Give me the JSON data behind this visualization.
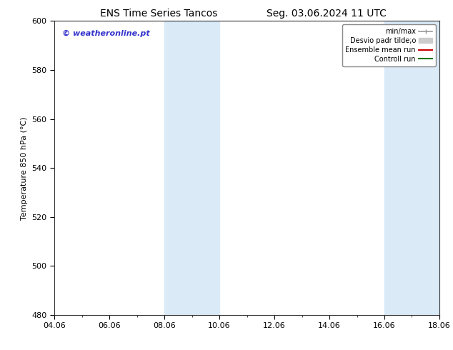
{
  "title_left": "ENS Time Series Tancos",
  "title_right": "Seg. 03.06.2024 11 UTC",
  "ylabel": "Temperature 850 hPa (°C)",
  "watermark": "© weatheronline.pt",
  "watermark_color": "#3333cc",
  "ylim": [
    480,
    600
  ],
  "yticks": [
    480,
    500,
    520,
    540,
    560,
    580,
    600
  ],
  "xtick_labels": [
    "04.06",
    "06.06",
    "08.06",
    "10.06",
    "12.06",
    "14.06",
    "16.06",
    "18.06"
  ],
  "xtick_positions": [
    0,
    2,
    4,
    6,
    8,
    10,
    12,
    14
  ],
  "x_min": 0,
  "x_max": 14,
  "shaded_bands": [
    {
      "x_start": 4.0,
      "x_end": 4.67,
      "color": "#daeaf7"
    },
    {
      "x_start": 4.67,
      "x_end": 6.0,
      "color": "#daeaf7"
    },
    {
      "x_start": 12.0,
      "x_end": 12.67,
      "color": "#daeaf7"
    },
    {
      "x_start": 12.67,
      "x_end": 14.0,
      "color": "#daeaf7"
    }
  ],
  "legend_labels": [
    "min/max",
    "Desvio padr tilde;o",
    "Ensemble mean run",
    "Controll run"
  ],
  "legend_colors": [
    "#999999",
    "#cccccc",
    "#cc0000",
    "#007700"
  ],
  "background_color": "#ffffff",
  "tick_fontsize": 8,
  "label_fontsize": 8,
  "title_fontsize": 10
}
